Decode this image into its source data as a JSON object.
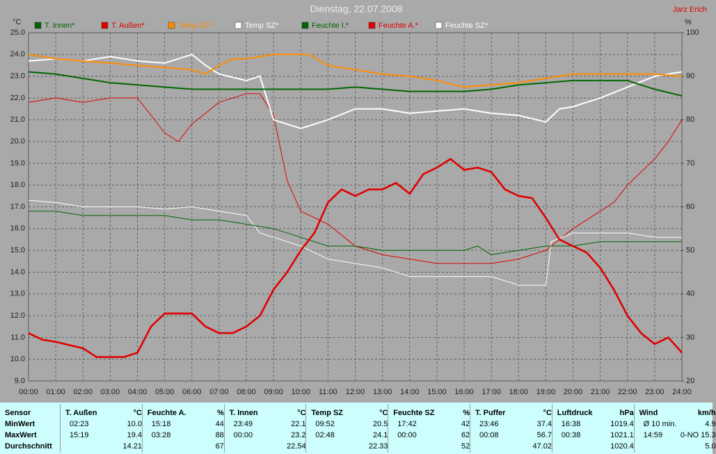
{
  "chart_data": {
    "type": "line",
    "title": "Dienstag, 22.07.2008",
    "author": "Jarz Erich",
    "y_label": "°C",
    "y2_label": "%",
    "grid": true,
    "xlim": [
      0,
      24
    ],
    "xticks": [
      {
        "value": 0,
        "label": "00:00"
      },
      {
        "value": 1,
        "label": "01:00"
      },
      {
        "value": 2,
        "label": "02:00"
      },
      {
        "value": 3,
        "label": "03:00"
      },
      {
        "value": 4,
        "label": "04:00"
      },
      {
        "value": 5,
        "label": "05:00"
      },
      {
        "value": 6,
        "label": "06:00"
      },
      {
        "value": 7,
        "label": "07:00"
      },
      {
        "value": 8,
        "label": "08:00"
      },
      {
        "value": 9,
        "label": "09:00"
      },
      {
        "value": 10,
        "label": "10:00"
      },
      {
        "value": 11,
        "label": "11:00"
      },
      {
        "value": 12,
        "label": "12:00"
      },
      {
        "value": 13,
        "label": "13:00"
      },
      {
        "value": 14,
        "label": "14:00"
      },
      {
        "value": 15,
        "label": "15:00"
      },
      {
        "value": 16,
        "label": "16:00"
      },
      {
        "value": 17,
        "label": "17:00"
      },
      {
        "value": 18,
        "label": "18:00"
      },
      {
        "value": 19,
        "label": "19:00"
      },
      {
        "value": 20,
        "label": "20:00"
      },
      {
        "value": 21,
        "label": "21:00"
      },
      {
        "value": 22,
        "label": "22:00"
      },
      {
        "value": 23,
        "label": "23:00"
      },
      {
        "value": 24,
        "label": "24:00"
      }
    ],
    "ylim": [
      9,
      25
    ],
    "yticks": [
      {
        "value": 9,
        "label": "9.0"
      },
      {
        "value": 10,
        "label": "10.0"
      },
      {
        "value": 11,
        "label": "11.0"
      },
      {
        "value": 12,
        "label": "12.0"
      },
      {
        "value": 13,
        "label": "13.0"
      },
      {
        "value": 14,
        "label": "14.0"
      },
      {
        "value": 15,
        "label": "15.0"
      },
      {
        "value": 16,
        "label": "16.0"
      },
      {
        "value": 17,
        "label": "17.0"
      },
      {
        "value": 18,
        "label": "18.0"
      },
      {
        "value": 19,
        "label": "19.0"
      },
      {
        "value": 20,
        "label": "20.0"
      },
      {
        "value": 21,
        "label": "21.0"
      },
      {
        "value": 22,
        "label": "22.0"
      },
      {
        "value": 23,
        "label": "23.0"
      },
      {
        "value": 24,
        "label": "24.0"
      },
      {
        "value": 25,
        "label": "25.0"
      }
    ],
    "y2lim": [
      20,
      100
    ],
    "y2ticks": [
      20,
      30,
      40,
      50,
      60,
      70,
      80,
      90,
      100
    ],
    "series": [
      {
        "name": "T. Innen*",
        "color": "#006400",
        "x": [
          0,
          1,
          2,
          3,
          4,
          5,
          6,
          7,
          8,
          9,
          10,
          11,
          12,
          13,
          14,
          15,
          16,
          17,
          18,
          19,
          20,
          21,
          22,
          23,
          24
        ],
        "values": [
          23.2,
          23.1,
          22.9,
          22.7,
          22.6,
          22.5,
          22.4,
          22.4,
          22.4,
          22.4,
          22.4,
          22.4,
          22.5,
          22.4,
          22.3,
          22.3,
          22.3,
          22.4,
          22.6,
          22.7,
          22.8,
          22.8,
          22.8,
          22.4,
          22.1
        ]
      },
      {
        "name": "T. Außen*",
        "color": "#e00000",
        "x": [
          0,
          0.5,
          1,
          2,
          2.5,
          3,
          3.5,
          4,
          4.5,
          5,
          6,
          6.5,
          7,
          7.5,
          8,
          8.5,
          9,
          9.5,
          10,
          10.5,
          11,
          11.5,
          12,
          12.5,
          13,
          13.5,
          14,
          14.5,
          15,
          15.5,
          16,
          16.5,
          17,
          17.5,
          18,
          18.5,
          19,
          19.5,
          20,
          20.5,
          21,
          21.5,
          22,
          22.5,
          23,
          23.5,
          24
        ],
        "values": [
          11.2,
          10.9,
          10.8,
          10.5,
          10.1,
          10.1,
          10.1,
          10.3,
          11.5,
          12.1,
          12.1,
          11.5,
          11.2,
          11.2,
          11.5,
          12.0,
          13.2,
          14.0,
          15.0,
          15.8,
          17.2,
          17.8,
          17.5,
          17.8,
          17.8,
          18.1,
          17.6,
          18.5,
          18.8,
          19.2,
          18.7,
          18.8,
          18.6,
          17.8,
          17.5,
          17.4,
          16.5,
          15.5,
          15.2,
          14.9,
          14.2,
          13.2,
          12.0,
          11.2,
          10.7,
          11.0,
          10.3
        ]
      },
      {
        "name": "Temp KZ*",
        "color": "#ff8c00",
        "x": [
          0,
          1,
          2,
          3,
          4,
          5,
          6,
          6.5,
          7,
          7.5,
          8,
          9,
          10,
          10.3,
          11,
          12,
          13,
          14,
          15,
          16,
          17,
          18,
          19,
          20,
          21,
          22,
          23,
          24
        ],
        "values": [
          24.0,
          23.8,
          23.7,
          23.6,
          23.5,
          23.4,
          23.3,
          23.1,
          23.5,
          23.8,
          23.8,
          24.0,
          24.0,
          24.0,
          23.5,
          23.3,
          23.1,
          23.0,
          22.8,
          22.5,
          22.6,
          22.7,
          22.9,
          23.1,
          23.1,
          23.1,
          23.1,
          23.0
        ]
      },
      {
        "name": "Temp SZ*",
        "color": "#ffffff",
        "x": [
          0,
          1,
          2,
          3,
          4,
          5,
          6,
          6.5,
          7,
          8,
          8.5,
          9,
          10,
          11,
          12,
          13,
          14,
          15,
          16,
          17,
          18,
          19,
          19.5,
          20,
          21,
          22,
          23,
          24
        ],
        "values": [
          23.7,
          23.8,
          23.7,
          23.9,
          23.7,
          23.6,
          24.0,
          23.5,
          23.1,
          22.8,
          23.0,
          21.0,
          20.6,
          21.0,
          21.5,
          21.5,
          21.3,
          21.4,
          21.5,
          21.3,
          21.2,
          20.9,
          21.5,
          21.6,
          22.0,
          22.5,
          23.0,
          23.2
        ]
      },
      {
        "name": "Feuchte I.*",
        "color": "#006400",
        "axis": "y2",
        "x": [
          0,
          1,
          2,
          3,
          4,
          5,
          6,
          7,
          8,
          9,
          10,
          11,
          12,
          13,
          14,
          15,
          16,
          16.5,
          17,
          18,
          19,
          20,
          21,
          22,
          23,
          24
        ],
        "values": [
          59,
          59,
          58,
          58,
          58,
          58,
          57,
          57,
          56,
          55,
          53,
          51,
          51,
          50,
          50,
          50,
          50,
          51,
          49,
          50,
          51,
          51,
          52,
          52,
          52,
          52
        ]
      },
      {
        "name": "Feuchte A.*",
        "color": "#e00000",
        "axis": "y2",
        "x": [
          0,
          1,
          2,
          3,
          4,
          4.5,
          5,
          5.5,
          6,
          7,
          8,
          8.5,
          9,
          9.5,
          10,
          11,
          12,
          13,
          14,
          15,
          16,
          17,
          18,
          19,
          20,
          21,
          21.5,
          22,
          23,
          23.5,
          24
        ],
        "values": [
          84,
          85,
          84,
          85,
          85,
          81,
          77,
          75,
          79,
          84,
          86,
          86,
          81,
          66,
          59,
          56,
          51,
          49,
          48,
          47,
          47,
          47,
          48,
          50,
          55,
          59,
          61,
          65,
          71,
          75,
          80
        ]
      },
      {
        "name": "Feuchte SZ*",
        "color": "#ffffff",
        "axis": "y2",
        "x": [
          0,
          1,
          2,
          3,
          4,
          5,
          6,
          7,
          8,
          8.5,
          9,
          10,
          11,
          12,
          13,
          14,
          15,
          16,
          17,
          17.5,
          18,
          19,
          19.2,
          20,
          21,
          22,
          23,
          24
        ],
        "values": [
          61.5,
          61,
          60,
          60,
          60,
          59.5,
          60,
          59,
          58,
          54,
          53,
          51,
          48,
          47,
          46,
          44,
          44,
          44,
          44,
          43,
          42,
          42,
          52,
          54,
          54,
          54,
          53,
          53
        ]
      }
    ]
  },
  "table": {
    "row_labels": [
      "Sensor",
      "MinWert",
      "MaxWert",
      "Durchschnitt"
    ],
    "groups": [
      {
        "name": "T. Außen",
        "unit": "°C",
        "min": {
          "time": "02:23",
          "value": "10.0"
        },
        "max": {
          "time": "15:19",
          "value": "19.4"
        },
        "avg": {
          "value": "14.21"
        }
      },
      {
        "name": "Feuchte A.",
        "unit": "%",
        "min": {
          "time": "15:18",
          "value": "44"
        },
        "max": {
          "time": "03:28",
          "value": "88"
        },
        "avg": {
          "value": "67"
        }
      },
      {
        "name": "T. Innen",
        "unit": "°C",
        "min": {
          "time": "23:49",
          "value": "22.1"
        },
        "max": {
          "time": "00:00",
          "value": "23.2"
        },
        "avg": {
          "value": "22.54"
        }
      },
      {
        "name": "Temp SZ",
        "unit": "°C",
        "min": {
          "time": "09:52",
          "value": "20.5"
        },
        "max": {
          "time": "02:48",
          "value": "24.1"
        },
        "avg": {
          "value": "22.33"
        }
      },
      {
        "name": "Feuchte SZ",
        "unit": "%",
        "min": {
          "time": "17:42",
          "value": "42"
        },
        "max": {
          "time": "00:00",
          "value": "62"
        },
        "avg": {
          "value": "52"
        }
      },
      {
        "name": "T. Puffer",
        "unit": "°C",
        "min": {
          "time": "23:46",
          "value": "37.4"
        },
        "max": {
          "time": "00:08",
          "value": "56.7"
        },
        "avg": {
          "value": "47.02"
        }
      },
      {
        "name": "Luftdruck",
        "unit": "hPa",
        "min": {
          "time": "16:38",
          "value": "1019.4"
        },
        "max": {
          "time": "00:38",
          "value": "1021.1"
        },
        "avg": {
          "value": "1020.4"
        }
      },
      {
        "name": "Wind",
        "unit": "km/h",
        "min": {
          "time": "Ø 10 min.",
          "value": "4.9"
        },
        "max": {
          "time": "14:59",
          "value": "0-NO 15.3"
        },
        "avg": {
          "value": "5.0"
        }
      }
    ]
  }
}
